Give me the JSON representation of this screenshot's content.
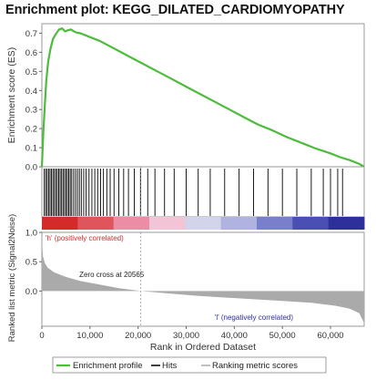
{
  "chart_data": {
    "type": "line",
    "title": "Enrichment plot: KEGG_DILATED_CARDIOMYOPATHY",
    "es_panel": {
      "ylabel": "Enrichment score (ES)",
      "ylim": [
        0,
        0.75
      ],
      "yticks": [
        "0.0",
        "0.1",
        "0.2",
        "0.3",
        "0.4",
        "0.5",
        "0.6",
        "0.7"
      ],
      "series": {
        "color": "#4dbb3c",
        "x": [
          0,
          300,
          600,
          900,
          1300,
          1800,
          2300,
          3000,
          3600,
          4200,
          4800,
          5400,
          6000,
          7000,
          8000,
          10000,
          12000,
          15000,
          18000,
          21000,
          24000,
          27000,
          30000,
          33000,
          36000,
          39000,
          42000,
          45000,
          48000,
          51000,
          54000,
          57000,
          60000,
          62000,
          64000,
          66000,
          67000
        ],
        "y": [
          0.0,
          0.18,
          0.32,
          0.45,
          0.55,
          0.62,
          0.67,
          0.7,
          0.72,
          0.725,
          0.71,
          0.715,
          0.72,
          0.705,
          0.7,
          0.68,
          0.66,
          0.62,
          0.58,
          0.54,
          0.5,
          0.46,
          0.42,
          0.38,
          0.34,
          0.3,
          0.26,
          0.22,
          0.19,
          0.155,
          0.125,
          0.095,
          0.07,
          0.05,
          0.035,
          0.015,
          0.0
        ]
      }
    },
    "hits": [
      500,
      800,
      1100,
      1400,
      1700,
      2000,
      2300,
      2600,
      2900,
      3200,
      3500,
      3800,
      4100,
      4400,
      4700,
      5000,
      5300,
      5600,
      5900,
      6200,
      6600,
      7000,
      7400,
      7800,
      8200,
      8700,
      9200,
      9800,
      10400,
      11000,
      11600,
      12200,
      12800,
      13500,
      14200,
      15000,
      16000,
      17000,
      18000,
      19200,
      20500,
      22000,
      23500,
      25500,
      27500,
      30000,
      32500,
      35000,
      38000,
      41000,
      44000,
      47000,
      50000,
      53000,
      56000,
      58500,
      60000,
      61500,
      62500
    ],
    "heatmap_colors": [
      "#d42a2a",
      "#e0555b",
      "#eb8ea5",
      "#f2c4d6",
      "#d3d4ec",
      "#b0b3e0",
      "#7a7fcb",
      "#4a4fb4",
      "#2d2f9b"
    ],
    "ranked_panel": {
      "ylabel": "Ranked list metric (Signal2Noise)",
      "ylim": [
        -0.6,
        1.0
      ],
      "yticks": [
        "1.0",
        "0.5",
        "0.0"
      ],
      "fill_color": "#aaaaaa",
      "x": [
        0,
        200,
        600,
        1200,
        2500,
        5000,
        8000,
        12000,
        16000,
        20565,
        26000,
        32000,
        38000,
        44000,
        50000,
        56000,
        61000,
        64000,
        66000,
        67000
      ],
      "y": [
        0.9,
        0.6,
        0.48,
        0.4,
        0.32,
        0.24,
        0.17,
        0.11,
        0.05,
        0.0,
        -0.04,
        -0.08,
        -0.11,
        -0.14,
        -0.17,
        -0.2,
        -0.25,
        -0.3,
        -0.38,
        -0.55
      ],
      "pos_label": "'h' (positively correlated)",
      "neg_label": "'l' (negatively correlated)",
      "zero_cross_label": "Zero cross at 20565",
      "zero_cross": 20565
    },
    "xlabel": "Rank in Ordered Dataset",
    "xlim": [
      0,
      67000
    ],
    "xticks": [
      {
        "value": 0,
        "label": "0"
      },
      {
        "value": 10000,
        "label": "10,000"
      },
      {
        "value": 20000,
        "label": "20,000"
      },
      {
        "value": 30000,
        "label": "30,000"
      },
      {
        "value": 40000,
        "label": "40,000"
      },
      {
        "value": 50000,
        "label": "50,000"
      },
      {
        "value": 60000,
        "label": "60,000"
      }
    ],
    "legend": {
      "placement": "bottom",
      "items": [
        {
          "label": "Enrichment profile",
          "color": "#4dbb3c",
          "style": "line"
        },
        {
          "label": "Hits",
          "color": "#000000",
          "style": "line"
        },
        {
          "label": "Ranking metric scores",
          "color": "#aaaaaa",
          "style": "line"
        }
      ]
    }
  }
}
